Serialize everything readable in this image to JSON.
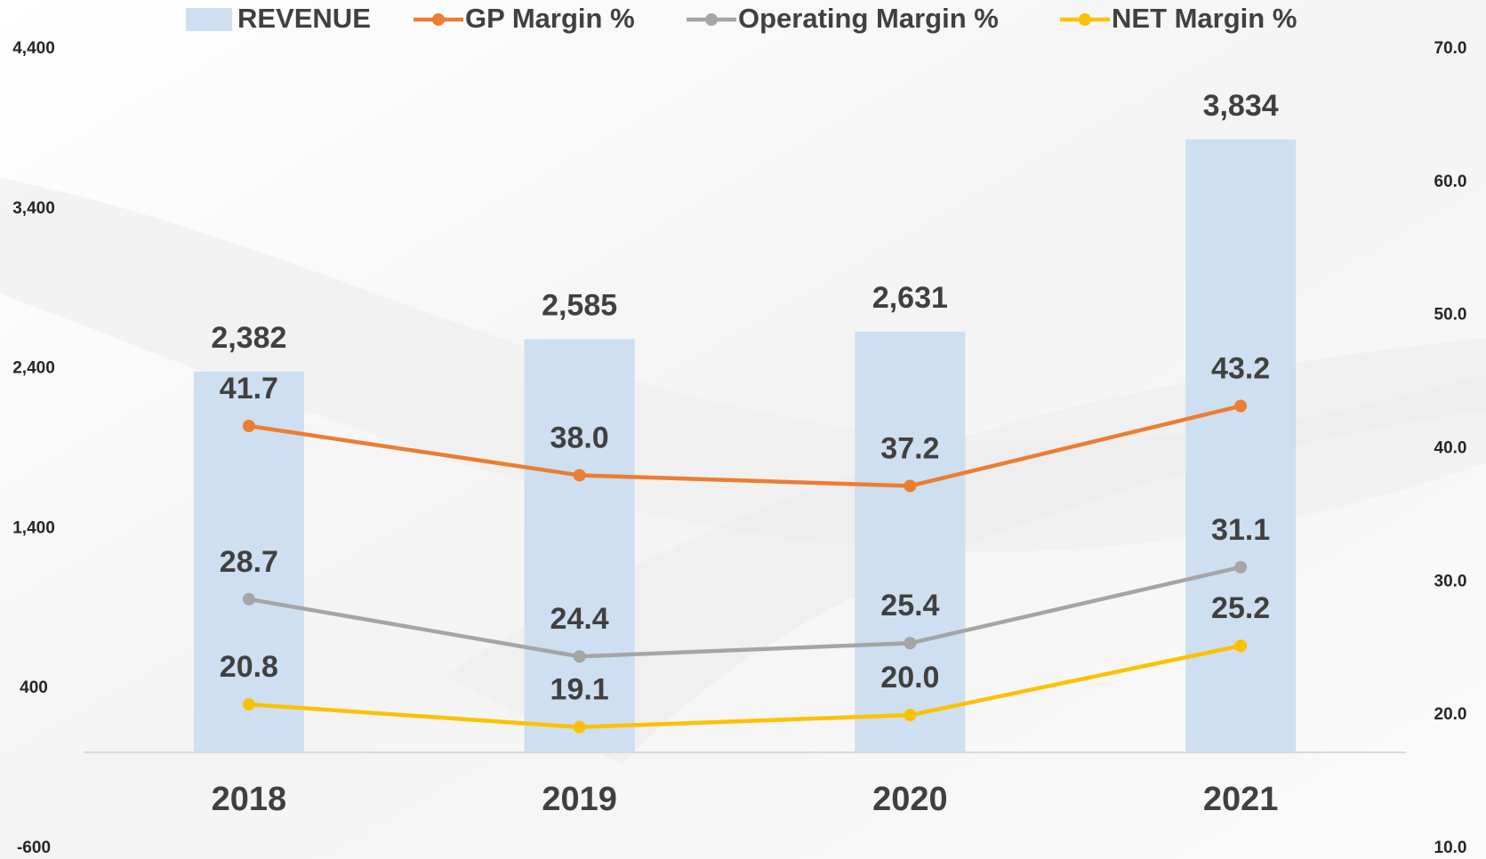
{
  "chart_data": {
    "type": "bar",
    "categories": [
      "2018",
      "2019",
      "2020",
      "2021"
    ],
    "series": [
      {
        "name": "REVENUE",
        "type": "bar",
        "color": "#cddff0",
        "values": [
          2382,
          2585,
          2631,
          3834
        ],
        "value_labels": [
          "2,382",
          "2,585",
          "2,631",
          "3,834"
        ]
      },
      {
        "name": "GP Margin %",
        "type": "line",
        "axis": "y2",
        "color": "#ed7d31",
        "values": [
          41.7,
          38.0,
          37.2,
          43.2
        ],
        "value_labels": [
          "41.7",
          "38.0",
          "37.2",
          "43.2"
        ]
      },
      {
        "name": "Operating Margin %",
        "type": "line",
        "axis": "y2",
        "color": "#a5a5a5",
        "values": [
          28.7,
          24.4,
          25.4,
          31.1
        ],
        "value_labels": [
          "28.7",
          "24.4",
          "25.4",
          "31.1"
        ]
      },
      {
        "name": "NET Margin %",
        "type": "line",
        "axis": "y2",
        "color": "#ffc000",
        "values": [
          20.8,
          19.1,
          20.0,
          25.2
        ],
        "value_labels": [
          "20.8",
          "19.1",
          "20.0",
          "25.2"
        ]
      }
    ],
    "ylim": [
      -600,
      4400
    ],
    "yticks": [
      {
        "value": -600,
        "label": "-600"
      },
      400,
      {
        "value": 1400,
        "label": "1,400"
      },
      {
        "value": 2400,
        "label": "2,400"
      },
      {
        "value": 3400,
        "label": "3,400"
      },
      {
        "value": 4400,
        "label": "4,400"
      }
    ],
    "y2lim": [
      10,
      70
    ],
    "y2ticks": [
      {
        "value": 10,
        "label": "10.0"
      },
      {
        "value": 20,
        "label": "20.0"
      },
      {
        "value": 30,
        "label": "30.0"
      },
      {
        "value": 40,
        "label": "40.0"
      },
      {
        "value": 50,
        "label": "50.0"
      },
      {
        "value": 60,
        "label": "60.0"
      },
      {
        "value": 70,
        "label": "70.0"
      }
    ],
    "legend": "top",
    "grid": false
  }
}
